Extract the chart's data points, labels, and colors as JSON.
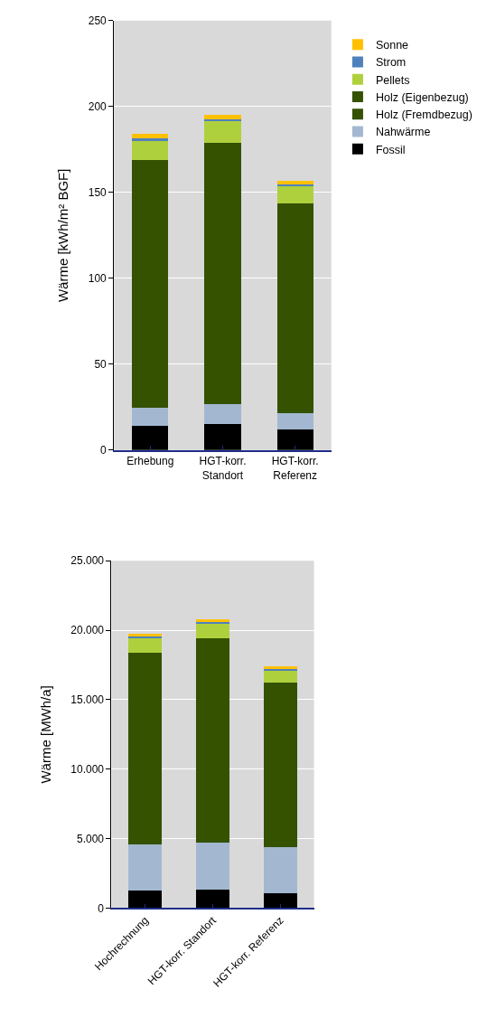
{
  "chart_data": [
    {
      "type": "bar",
      "stacked": true,
      "ylabel": "Wärme [kWh/m² BGF]",
      "categories": [
        "Erhebung",
        "HGT-korr. Standort",
        "HGT-korr. Referenz"
      ],
      "ylim": [
        0,
        250
      ],
      "yticks": [
        0,
        50,
        100,
        150,
        200,
        250
      ],
      "grid": "y",
      "legend": "right",
      "series": [
        {
          "name": "Fossil",
          "color": "#000000",
          "values": [
            14.2,
            15.1,
            12.1
          ]
        },
        {
          "name": "Nahwärme",
          "color": "#a3b8d0",
          "values": [
            10.6,
            11.4,
            9.2
          ]
        },
        {
          "name": "Holz (Fremdbezug)",
          "color": "#345200",
          "values": [
            36.7,
            38.7,
            31.0
          ]
        },
        {
          "name": "Holz (Eigenbezug)",
          "color": "#345200",
          "values": [
            107.3,
            113.8,
            91.5
          ]
        },
        {
          "name": "Pellets",
          "color": "#afd03d",
          "values": [
            11.6,
            12.3,
            9.9
          ]
        },
        {
          "name": "Strom",
          "color": "#4f81bd",
          "values": [
            0.9,
            1.1,
            0.7
          ]
        },
        {
          "name": "Sonne",
          "color": "#ffc000",
          "values": [
            2.6,
            2.6,
            2.4
          ]
        }
      ]
    },
    {
      "type": "bar",
      "stacked": true,
      "ylabel": "Wärme [MWh/a]",
      "categories": [
        "Hochrechnung",
        "HGT-korr. Standort",
        "HGT-korr. Referenz"
      ],
      "ylim": [
        0,
        25000
      ],
      "yticks": [
        0,
        {
          "value": 5000,
          "label": "5.000"
        },
        {
          "value": 10000,
          "label": "10.000"
        },
        {
          "value": 15000,
          "label": "15.000"
        },
        {
          "value": 20000,
          "label": "20.000"
        },
        {
          "value": 25000,
          "label": "25.000"
        }
      ],
      "grid": "y",
      "series": [
        {
          "color": "#000000",
          "values": [
            1270,
            1330,
            1070
          ]
        },
        {
          "color": "#a3b8d0",
          "values": [
            3330,
            3370,
            3330
          ]
        },
        {
          "color": "#345200",
          "values": [
            920,
            990,
            840
          ]
        },
        {
          "color": "#345200",
          "values": [
            3240,
            3480,
            2770
          ]
        },
        {
          "color": "#345200",
          "values": [
            9640,
            10220,
            8200
          ]
        },
        {
          "color": "#afd03d",
          "values": [
            1030,
            1090,
            900
          ]
        },
        {
          "color": "#4f81bd",
          "values": [
            110,
            110,
            90
          ]
        },
        {
          "color": "#ffc000",
          "values": [
            210,
            220,
            210
          ]
        }
      ]
    }
  ]
}
